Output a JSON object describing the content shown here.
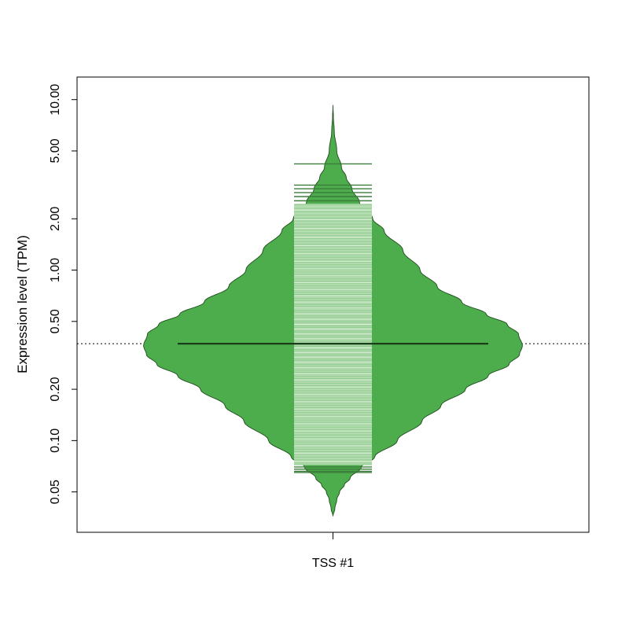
{
  "chart_data": {
    "type": "beanplot",
    "title": "",
    "xlabel": "",
    "ylabel": "Expression level (TPM)",
    "y_scale": "log",
    "ylim": [
      0.028,
      12
    ],
    "y_ticks": [
      0.05,
      0.1,
      0.2,
      0.5,
      1.0,
      2.0,
      5.0,
      10.0
    ],
    "y_tick_labels": [
      "0.05",
      "0.10",
      "0.20",
      "0.50",
      "1.00",
      "2.00",
      "5.00",
      "10.00"
    ],
    "categories": [
      "TSS #1"
    ],
    "overall_average_line": 0.37,
    "grid": false,
    "legend": "none",
    "colors": {
      "bean_fill": "#4dac4b",
      "bean_outline": "#1f4d1e",
      "beanline_fill": "#b3dcb1",
      "beanline_stroke": "#3d7d3c",
      "average_line": "#1b3d1a"
    },
    "series": [
      {
        "category": "TSS #1",
        "mean": 0.37,
        "density_max_width": 0.74,
        "density_profile": [
          [
            0.036,
            0.0
          ],
          [
            0.04,
            0.01
          ],
          [
            0.045,
            0.02
          ],
          [
            0.05,
            0.035
          ],
          [
            0.055,
            0.06
          ],
          [
            0.06,
            0.09
          ],
          [
            0.07,
            0.15
          ],
          [
            0.08,
            0.22
          ],
          [
            0.1,
            0.34
          ],
          [
            0.13,
            0.47
          ],
          [
            0.16,
            0.57
          ],
          [
            0.2,
            0.7
          ],
          [
            0.24,
            0.82
          ],
          [
            0.28,
            0.93
          ],
          [
            0.32,
            0.985
          ],
          [
            0.36,
            1.0
          ],
          [
            0.42,
            0.98
          ],
          [
            0.48,
            0.92
          ],
          [
            0.55,
            0.81
          ],
          [
            0.65,
            0.68
          ],
          [
            0.8,
            0.55
          ],
          [
            1.0,
            0.46
          ],
          [
            1.3,
            0.37
          ],
          [
            1.7,
            0.27
          ],
          [
            2.0,
            0.21
          ],
          [
            2.5,
            0.14
          ],
          [
            3.0,
            0.1
          ],
          [
            3.5,
            0.07
          ],
          [
            4.0,
            0.045
          ],
          [
            5.0,
            0.02
          ],
          [
            6.5,
            0.007
          ],
          [
            8.0,
            0.002
          ],
          [
            9.3,
            0.0
          ]
        ],
        "observations": [
          0.065,
          0.066,
          0.068,
          0.07,
          0.072,
          0.074,
          0.077,
          0.08,
          0.083,
          0.086,
          0.089,
          0.092,
          0.095,
          0.098,
          0.101,
          0.104,
          0.108,
          0.112,
          0.116,
          0.12,
          0.124,
          0.128,
          0.132,
          0.136,
          0.141,
          0.146,
          0.151,
          0.156,
          0.161,
          0.166,
          0.172,
          0.178,
          0.184,
          0.19,
          0.196,
          0.203,
          0.21,
          0.217,
          0.224,
          0.231,
          0.238,
          0.245,
          0.252,
          0.259,
          0.266,
          0.273,
          0.28,
          0.287,
          0.294,
          0.301,
          0.308,
          0.315,
          0.322,
          0.329,
          0.336,
          0.343,
          0.35,
          0.357,
          0.364,
          0.372,
          0.38,
          0.388,
          0.396,
          0.404,
          0.413,
          0.422,
          0.431,
          0.44,
          0.45,
          0.46,
          0.47,
          0.48,
          0.491,
          0.502,
          0.514,
          0.526,
          0.539,
          0.552,
          0.566,
          0.58,
          0.595,
          0.611,
          0.627,
          0.644,
          0.662,
          0.681,
          0.7,
          0.72,
          0.741,
          0.763,
          0.786,
          0.81,
          0.835,
          0.861,
          0.888,
          0.916,
          0.945,
          0.975,
          1.006,
          1.04,
          1.075,
          1.11,
          1.15,
          1.19,
          1.23,
          1.275,
          1.32,
          1.37,
          1.42,
          1.47,
          1.53,
          1.59,
          1.65,
          1.72,
          1.79,
          1.86,
          1.94,
          2.02,
          2.1,
          2.2,
          2.3,
          2.42,
          2.55,
          2.7,
          2.85,
          3.0,
          3.15,
          4.2
        ]
      }
    ]
  }
}
